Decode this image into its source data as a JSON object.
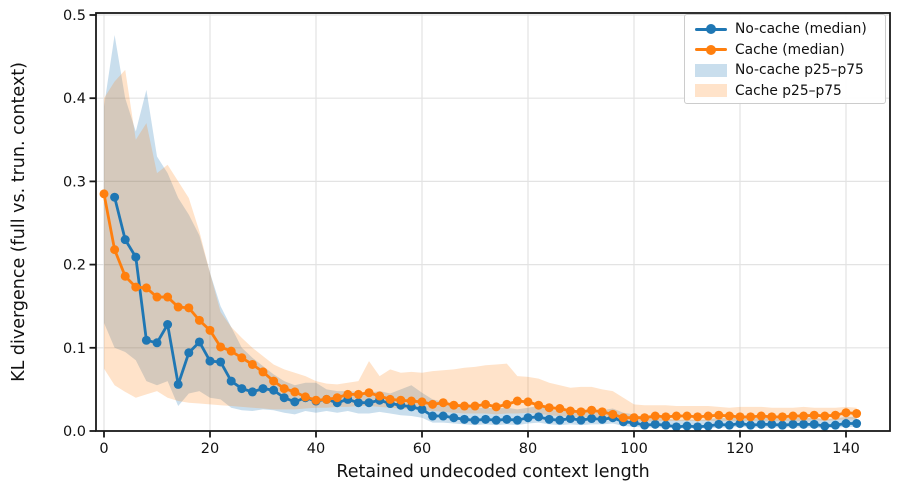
{
  "chart_data": {
    "type": "line",
    "title": "",
    "xlabel": "Retained undecoded context length",
    "ylabel": "KL divergence (full vs. trun. context)",
    "xlim": [
      -1.5,
      148.3
    ],
    "ylim": [
      0,
      0.5
    ],
    "grid": true,
    "legend_position": "upper right",
    "x_ticks": [
      0,
      20,
      40,
      60,
      80,
      100,
      120,
      140
    ],
    "x_tick_labels": [
      "0",
      "20",
      "40",
      "60",
      "80",
      "100",
      "120",
      "140"
    ],
    "y_ticks": [
      0.0,
      0.1,
      0.2,
      0.3,
      0.4,
      0.5
    ],
    "y_tick_labels": [
      "0.0",
      "0.1",
      "0.2",
      "0.3",
      "0.4",
      "0.5"
    ],
    "style": {
      "accent_blue": "#1f77b4",
      "accent_orange": "#ff7f0e",
      "band_blue": "rgba(31,119,180,0.24)",
      "band_orange": "rgba(255,127,14,0.22)",
      "grid_color": "#e3e3e3",
      "spine_color": "#1a1a1a"
    },
    "legend_entries": [
      {
        "label": "No-cache (median)",
        "kind": "line",
        "color": "#1f77b4"
      },
      {
        "label": "Cache (median)",
        "kind": "line",
        "color": "#ff7f0e"
      },
      {
        "label": "No-cache p25–p75",
        "kind": "band",
        "color": "rgba(31,119,180,0.24)"
      },
      {
        "label": "Cache p25–p75",
        "kind": "band",
        "color": "rgba(255,127,14,0.22)"
      }
    ],
    "series": [
      {
        "name": "No-cache (median)",
        "kind": "line",
        "color": "#1f77b4",
        "x": [
          2,
          4,
          6,
          8,
          10,
          12,
          14,
          16,
          18,
          20,
          22,
          24,
          26,
          28,
          30,
          32,
          34,
          36,
          38,
          40,
          42,
          44,
          46,
          48,
          50,
          52,
          54,
          56,
          58,
          60,
          62,
          64,
          66,
          68,
          70,
          72,
          74,
          76,
          78,
          80,
          82,
          84,
          86,
          88,
          90,
          92,
          94,
          96,
          98,
          100,
          102,
          104,
          106,
          108,
          110,
          112,
          114,
          116,
          118,
          120,
          122,
          124,
          126,
          128,
          130,
          132,
          134,
          136,
          138,
          140,
          142
        ],
        "y": [
          0.281,
          0.23,
          0.209,
          0.109,
          0.106,
          0.128,
          0.056,
          0.094,
          0.107,
          0.084,
          0.083,
          0.06,
          0.051,
          0.047,
          0.051,
          0.049,
          0.04,
          0.035,
          0.04,
          0.036,
          0.038,
          0.034,
          0.038,
          0.034,
          0.034,
          0.037,
          0.033,
          0.031,
          0.029,
          0.026,
          0.018,
          0.018,
          0.016,
          0.014,
          0.013,
          0.014,
          0.013,
          0.014,
          0.013,
          0.016,
          0.017,
          0.014,
          0.013,
          0.015,
          0.013,
          0.015,
          0.014,
          0.016,
          0.011,
          0.01,
          0.007,
          0.008,
          0.007,
          0.005,
          0.006,
          0.005,
          0.006,
          0.008,
          0.007,
          0.009,
          0.007,
          0.008,
          0.008,
          0.007,
          0.008,
          0.008,
          0.008,
          0.006,
          0.007,
          0.009,
          0.009
        ]
      },
      {
        "name": "Cache (median)",
        "kind": "line",
        "color": "#ff7f0e",
        "x": [
          0,
          2,
          4,
          6,
          8,
          10,
          12,
          14,
          16,
          18,
          20,
          22,
          24,
          26,
          28,
          30,
          32,
          34,
          36,
          38,
          40,
          42,
          44,
          46,
          48,
          50,
          52,
          54,
          56,
          58,
          60,
          62,
          64,
          66,
          68,
          70,
          72,
          74,
          76,
          78,
          80,
          82,
          84,
          86,
          88,
          90,
          92,
          94,
          96,
          98,
          100,
          102,
          104,
          106,
          108,
          110,
          112,
          114,
          116,
          118,
          120,
          122,
          124,
          126,
          128,
          130,
          132,
          134,
          136,
          138,
          140,
          142
        ],
        "y": [
          0.285,
          0.218,
          0.186,
          0.173,
          0.172,
          0.161,
          0.161,
          0.149,
          0.148,
          0.133,
          0.121,
          0.101,
          0.096,
          0.088,
          0.08,
          0.071,
          0.06,
          0.051,
          0.047,
          0.041,
          0.037,
          0.038,
          0.04,
          0.044,
          0.044,
          0.046,
          0.042,
          0.038,
          0.037,
          0.036,
          0.035,
          0.032,
          0.034,
          0.031,
          0.03,
          0.03,
          0.032,
          0.029,
          0.032,
          0.036,
          0.035,
          0.031,
          0.028,
          0.027,
          0.024,
          0.023,
          0.025,
          0.023,
          0.02,
          0.016,
          0.016,
          0.016,
          0.018,
          0.017,
          0.018,
          0.018,
          0.017,
          0.018,
          0.019,
          0.018,
          0.017,
          0.017,
          0.018,
          0.017,
          0.017,
          0.018,
          0.018,
          0.019,
          0.018,
          0.019,
          0.022,
          0.021
        ]
      },
      {
        "name": "No-cache p25–p75",
        "kind": "band",
        "color": "#1f77b4",
        "opacity": 0.24,
        "x": [
          0,
          2,
          4,
          6,
          8,
          10,
          12,
          14,
          16,
          18,
          20,
          22,
          24,
          26,
          28,
          30,
          32,
          34,
          36,
          38,
          40,
          42,
          44,
          46,
          48,
          50,
          52,
          54,
          56,
          58,
          60,
          62,
          64,
          66,
          68,
          70,
          72,
          74,
          76,
          78,
          80,
          82,
          84,
          86,
          88,
          90,
          92,
          94,
          96,
          98,
          100,
          102,
          104,
          106,
          108,
          110,
          112,
          114,
          116,
          118,
          120,
          122,
          124,
          126,
          128,
          130,
          132,
          134,
          136,
          138,
          140,
          142
        ],
        "upper": [
          0.39,
          0.476,
          0.4,
          0.36,
          0.41,
          0.33,
          0.31,
          0.28,
          0.26,
          0.235,
          0.19,
          0.15,
          0.125,
          0.1,
          0.088,
          0.078,
          0.068,
          0.06,
          0.055,
          0.058,
          0.058,
          0.05,
          0.048,
          0.048,
          0.047,
          0.046,
          0.048,
          0.045,
          0.05,
          0.055,
          0.046,
          0.038,
          0.035,
          0.032,
          0.03,
          0.028,
          0.028,
          0.027,
          0.028,
          0.026,
          0.028,
          0.03,
          0.026,
          0.024,
          0.026,
          0.024,
          0.026,
          0.025,
          0.027,
          0.022,
          0.02,
          0.016,
          0.016,
          0.015,
          0.013,
          0.014,
          0.013,
          0.014,
          0.016,
          0.015,
          0.017,
          0.015,
          0.016,
          0.016,
          0.015,
          0.016,
          0.016,
          0.016,
          0.014,
          0.015,
          0.017,
          0.017
        ],
        "lower": [
          0.13,
          0.1,
          0.095,
          0.085,
          0.06,
          0.055,
          0.06,
          0.03,
          0.045,
          0.048,
          0.04,
          0.038,
          0.028,
          0.025,
          0.024,
          0.026,
          0.025,
          0.022,
          0.02,
          0.024,
          0.022,
          0.024,
          0.022,
          0.024,
          0.021,
          0.021,
          0.023,
          0.021,
          0.019,
          0.018,
          0.016,
          0.01,
          0.01,
          0.009,
          0.008,
          0.007,
          0.008,
          0.007,
          0.008,
          0.007,
          0.009,
          0.01,
          0.008,
          0.007,
          0.008,
          0.007,
          0.008,
          0.008,
          0.009,
          0.006,
          0.005,
          0.004,
          0.004,
          0.004,
          0.003,
          0.003,
          0.003,
          0.003,
          0.004,
          0.004,
          0.005,
          0.004,
          0.004,
          0.004,
          0.004,
          0.004,
          0.004,
          0.004,
          0.003,
          0.004,
          0.005,
          0.005
        ]
      },
      {
        "name": "Cache p25–p75",
        "kind": "band",
        "color": "#ff7f0e",
        "opacity": 0.22,
        "x": [
          0,
          2,
          4,
          6,
          8,
          10,
          12,
          14,
          16,
          18,
          20,
          22,
          24,
          26,
          28,
          30,
          32,
          34,
          36,
          38,
          40,
          42,
          44,
          46,
          48,
          50,
          52,
          54,
          56,
          58,
          60,
          62,
          64,
          66,
          68,
          70,
          72,
          74,
          76,
          78,
          80,
          82,
          84,
          86,
          88,
          90,
          92,
          94,
          96,
          98,
          100,
          102,
          104,
          106,
          108,
          110,
          112,
          114,
          116,
          118,
          120,
          122,
          124,
          126,
          128,
          130,
          132,
          134,
          136,
          138,
          140,
          142
        ],
        "upper": [
          0.4,
          0.42,
          0.434,
          0.35,
          0.37,
          0.31,
          0.32,
          0.3,
          0.28,
          0.24,
          0.19,
          0.143,
          0.125,
          0.112,
          0.1,
          0.09,
          0.08,
          0.074,
          0.07,
          0.066,
          0.06,
          0.057,
          0.056,
          0.058,
          0.06,
          0.084,
          0.066,
          0.074,
          0.07,
          0.071,
          0.07,
          0.072,
          0.073,
          0.074,
          0.076,
          0.077,
          0.079,
          0.08,
          0.081,
          0.066,
          0.065,
          0.063,
          0.058,
          0.055,
          0.052,
          0.053,
          0.053,
          0.05,
          0.048,
          0.04,
          0.032,
          0.031,
          0.031,
          0.031,
          0.03,
          0.03,
          0.03,
          0.03,
          0.029,
          0.028,
          0.029,
          0.029,
          0.029,
          0.028,
          0.028,
          0.028,
          0.029,
          0.028,
          0.028,
          0.028,
          0.029,
          0.028
        ],
        "lower": [
          0.075,
          0.055,
          0.047,
          0.04,
          0.044,
          0.048,
          0.04,
          0.036,
          0.034,
          0.033,
          0.032,
          0.031,
          0.03,
          0.029,
          0.028,
          0.027,
          0.026,
          0.026,
          0.026,
          0.027,
          0.028,
          0.028,
          0.029,
          0.029,
          0.03,
          0.03,
          0.029,
          0.028,
          0.027,
          0.026,
          0.025,
          0.024,
          0.023,
          0.022,
          0.021,
          0.021,
          0.021,
          0.02,
          0.021,
          0.021,
          0.022,
          0.021,
          0.019,
          0.018,
          0.017,
          0.016,
          0.017,
          0.016,
          0.014,
          0.012,
          0.012,
          0.011,
          0.012,
          0.012,
          0.012,
          0.012,
          0.012,
          0.012,
          0.012,
          0.012,
          0.012,
          0.012,
          0.012,
          0.012,
          0.012,
          0.012,
          0.012,
          0.013,
          0.012,
          0.013,
          0.014,
          0.014
        ]
      }
    ]
  }
}
